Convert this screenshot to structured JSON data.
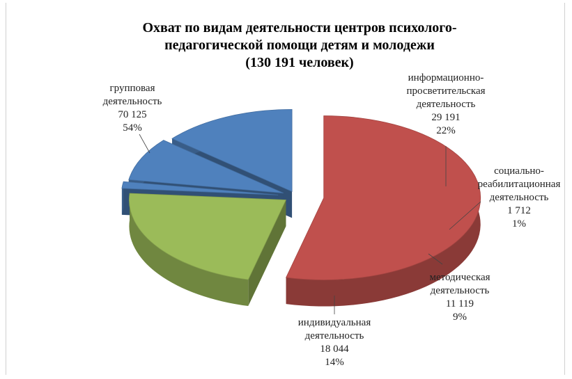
{
  "chart_data": {
    "type": "pie3d",
    "title": "Охват по видам деятельности  центров психолого-\nпедагогической помощи детям и молодежи\n(130 191 человек)",
    "categories": [
      "групповая\nдеятельность",
      "информационно-\nпросветительская\nдеятельность",
      "социально-\nреабилитационная\nдеятельность",
      "методическая\nдеятельность",
      "индивидуальная\nдеятельность"
    ],
    "series": [
      {
        "values": [
          70125,
          29191,
          1712,
          11119,
          18044
        ],
        "value_labels": [
          "70 125",
          "29 191",
          "1 712",
          "11 119",
          "18 044"
        ]
      }
    ],
    "percents": [
      54,
      22,
      1,
      9,
      14
    ],
    "percent_labels": [
      "54%",
      "22%",
      "1%",
      "9%",
      "14%"
    ],
    "colors": [
      "#c0504d",
      "#9bbb59",
      "#4f81bd",
      "#4f81bd",
      "#4f81bd"
    ]
  }
}
